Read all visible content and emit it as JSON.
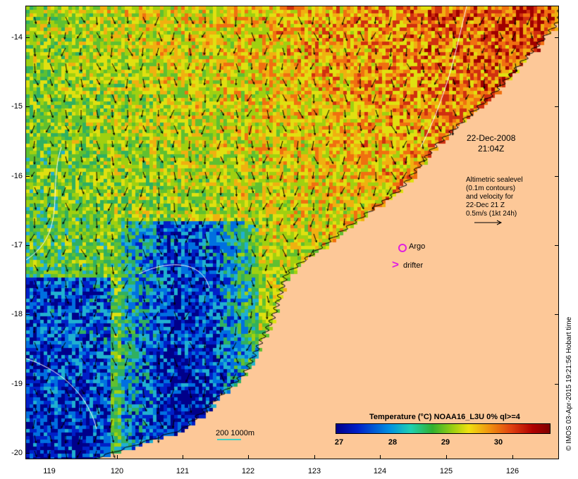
{
  "map": {
    "lat_labels": [
      "-14",
      "-15",
      "-16",
      "-17",
      "-18",
      "-19",
      "-20"
    ],
    "lon_labels": [
      "119",
      "120",
      "121",
      "122",
      "123",
      "124",
      "125",
      "126"
    ],
    "region": {
      "lat_min": -20.1,
      "lat_max": -13.5,
      "lon_min": 118.7,
      "lon_max": 126.7
    },
    "land_color": "#fdc898",
    "date_line1": "22-Dec-2008",
    "date_line2": "21:04Z",
    "altimetry_lines": [
      "Altimetric sealevel",
      "(0.1m contours)",
      "and velocity for",
      "22-Dec 21 Z",
      "0.5m/s (1kt 24h)"
    ],
    "argo_label": "Argo",
    "drifter_label": "drifter",
    "drifter_glyph": ">",
    "argo_color": "#e020e0",
    "scale_bar_label": "200  1000m",
    "credit": "© IMOS 03-Apr-2015 19:21:56 Hobart time"
  },
  "colorbar": {
    "title": "Temperature (°C) NOAA16_L3U 0% ql>=4",
    "ticks": [
      "27",
      "28",
      "29",
      "30"
    ],
    "range": [
      26.95,
      30.95
    ]
  }
}
